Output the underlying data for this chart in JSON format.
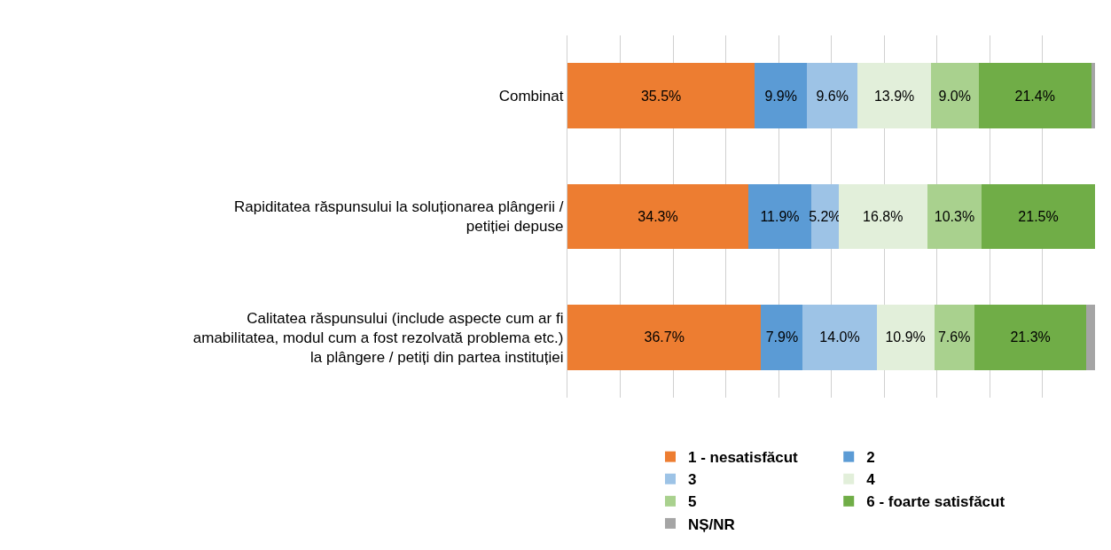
{
  "chart_data": {
    "type": "bar",
    "orientation": "horizontal",
    "stacked": true,
    "categories": [
      "Combinat",
      "Rapiditatea răspunsului la soluționarea plângerii / petiției depuse",
      "Calitatea răspunsului (include aspecte cum ar fi amabilitatea, modul cum a fost rezolvată problema etc.) la plângere / petiți din partea instituției"
    ],
    "series": [
      {
        "name": "1 - nesatisfăcut",
        "color": "#ed7d31",
        "values": [
          35.5,
          34.3,
          36.7
        ],
        "value_labels": [
          "35.5%",
          "34.3%",
          "36.7%"
        ]
      },
      {
        "name": "2",
        "color": "#5b9bd5",
        "values": [
          9.9,
          11.9,
          7.9
        ],
        "value_labels": [
          "9.9%",
          "11.9%",
          "7.9%"
        ]
      },
      {
        "name": "3",
        "color": "#9dc3e6",
        "values": [
          9.6,
          5.2,
          14.0
        ],
        "value_labels": [
          "9.6%",
          "5.2%",
          "14.0%"
        ]
      },
      {
        "name": "4",
        "color": "#e2efda",
        "values": [
          13.9,
          16.8,
          10.9
        ],
        "value_labels": [
          "13.9%",
          "16.8%",
          "10.9%"
        ]
      },
      {
        "name": "5",
        "color": "#a9d18e",
        "values": [
          9.0,
          10.3,
          7.6
        ],
        "value_labels": [
          "9.0%",
          "10.3%",
          "7.6%"
        ]
      },
      {
        "name": "6 - foarte satisfăcut",
        "color": "#70ad47",
        "values": [
          21.4,
          21.5,
          21.3
        ],
        "value_labels": [
          "21.4%",
          "21.5%",
          "21.3%"
        ]
      },
      {
        "name": "NȘ/NR",
        "color": "#a5a5a5",
        "values": [
          0.7,
          0,
          1.6
        ],
        "value_labels": [
          null,
          null,
          null
        ]
      }
    ],
    "xlim": [
      0,
      100
    ],
    "xticks": [
      {
        "value": 10,
        "label": null
      },
      {
        "value": 20,
        "label": null
      },
      {
        "value": 30,
        "label": null
      },
      {
        "value": 40,
        "label": null
      },
      {
        "value": 50,
        "label": null
      },
      {
        "value": 60,
        "label": null
      },
      {
        "value": 70,
        "label": null
      },
      {
        "value": 80,
        "label": null
      },
      {
        "value": 90,
        "label": null
      }
    ],
    "tick_labels": "y",
    "grid": "x",
    "legend": "bottom"
  }
}
